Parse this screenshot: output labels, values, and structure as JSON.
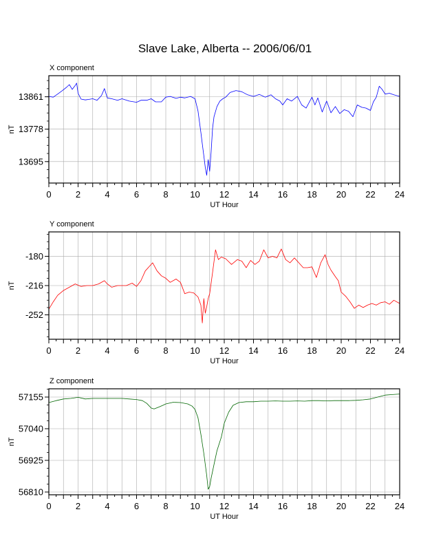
{
  "title": "Slave Lake, Alberta -- 2006/06/01",
  "chart_data": [
    {
      "type": "line",
      "panel_label": "X component",
      "xlabel": "UT Hour",
      "ylabel": "nT",
      "xlim": [
        0,
        24
      ],
      "ylim": [
        13640,
        13915
      ],
      "xticks": [
        0,
        2,
        4,
        6,
        8,
        10,
        12,
        14,
        16,
        18,
        20,
        22,
        24
      ],
      "yticks": [
        13695,
        13778,
        13861
      ],
      "grid": true,
      "color": "#0000ff",
      "series": [
        {
          "x": [
            0,
            0.3,
            0.6,
            0.9,
            1.2,
            1.4,
            1.6,
            1.8,
            1.9,
            2.0,
            2.2,
            2.5,
            3.0,
            3.3,
            3.6,
            3.8,
            4.0,
            4.3,
            4.7,
            5.0,
            5.5,
            6.0,
            6.3,
            6.7,
            7.0,
            7.3,
            7.7,
            8.0,
            8.3,
            8.7,
            9.0,
            9.3,
            9.7,
            10.0,
            10.2,
            10.4,
            10.5,
            10.6,
            10.7,
            10.8,
            10.9,
            11.0,
            11.1,
            11.2,
            11.3,
            11.5,
            11.7,
            11.9,
            12.1,
            12.4,
            12.8,
            13.2,
            13.6,
            14.0,
            14.4,
            14.8,
            15.2,
            15.5,
            15.8,
            16.0,
            16.3,
            16.6,
            17.0,
            17.3,
            17.6,
            18.0,
            18.2,
            18.4,
            18.7,
            19.0,
            19.3,
            19.6,
            19.9,
            20.2,
            20.5,
            20.8,
            21.1,
            21.4,
            21.7,
            22.0,
            22.2,
            22.4,
            22.6,
            22.8,
            23.0,
            23.3,
            23.6,
            24.0
          ],
          "y": [
            13862,
            13860,
            13868,
            13876,
            13885,
            13892,
            13880,
            13890,
            13896,
            13870,
            13855,
            13853,
            13856,
            13852,
            13864,
            13882,
            13858,
            13856,
            13852,
            13856,
            13850,
            13847,
            13852,
            13852,
            13856,
            13848,
            13848,
            13860,
            13862,
            13857,
            13860,
            13858,
            13862,
            13856,
            13825,
            13770,
            13740,
            13710,
            13680,
            13660,
            13700,
            13670,
            13720,
            13780,
            13810,
            13836,
            13850,
            13856,
            13860,
            13872,
            13877,
            13874,
            13866,
            13862,
            13867,
            13860,
            13866,
            13856,
            13850,
            13840,
            13856,
            13850,
            13862,
            13840,
            13832,
            13860,
            13840,
            13858,
            13822,
            13850,
            13820,
            13836,
            13818,
            13828,
            13824,
            13810,
            13840,
            13834,
            13832,
            13826,
            13848,
            13860,
            13888,
            13880,
            13868,
            13870,
            13866,
            13862
          ]
        }
      ]
    },
    {
      "type": "line",
      "panel_label": "Y component",
      "xlabel": "UT Hour",
      "ylabel": "nT",
      "xlim": [
        0,
        24
      ],
      "ylim": [
        -282,
        -150
      ],
      "xticks": [
        0,
        2,
        4,
        6,
        8,
        10,
        12,
        14,
        16,
        18,
        20,
        22,
        24
      ],
      "yticks": [
        -252,
        -216,
        -180
      ],
      "grid": true,
      "color": "#ff0000",
      "series": [
        {
          "x": [
            0,
            0.3,
            0.6,
            1.0,
            1.4,
            1.8,
            2.2,
            2.6,
            3.0,
            3.4,
            3.8,
            4.0,
            4.3,
            4.7,
            5.0,
            5.3,
            5.7,
            6.0,
            6.3,
            6.6,
            6.9,
            7.1,
            7.4,
            7.7,
            8.0,
            8.3,
            8.7,
            9.0,
            9.3,
            9.6,
            9.9,
            10.2,
            10.4,
            10.5,
            10.6,
            10.7,
            10.8,
            10.9,
            11.0,
            11.2,
            11.4,
            11.6,
            11.8,
            12.1,
            12.5,
            12.9,
            13.2,
            13.5,
            13.8,
            14.1,
            14.4,
            14.7,
            15.0,
            15.3,
            15.6,
            15.9,
            16.2,
            16.5,
            16.8,
            17.1,
            17.4,
            17.7,
            18.0,
            18.3,
            18.6,
            18.9,
            19.1,
            19.3,
            19.6,
            19.8,
            20.0,
            20.3,
            20.6,
            20.9,
            21.2,
            21.5,
            21.8,
            22.1,
            22.4,
            22.7,
            23.0,
            23.3,
            23.6,
            24.0
          ],
          "y": [
            -245,
            -236,
            -228,
            -222,
            -218,
            -214,
            -217,
            -216,
            -216,
            -214,
            -210,
            -214,
            -218,
            -216,
            -216,
            -216,
            -213,
            -217,
            -210,
            -198,
            -192,
            -188,
            -198,
            -204,
            -207,
            -212,
            -208,
            -212,
            -226,
            -224,
            -225,
            -230,
            -240,
            -262,
            -232,
            -250,
            -242,
            -232,
            -226,
            -200,
            -172,
            -184,
            -181,
            -183,
            -190,
            -184,
            -186,
            -194,
            -185,
            -190,
            -186,
            -172,
            -182,
            -180,
            -182,
            -171,
            -184,
            -188,
            -182,
            -188,
            -194,
            -194,
            -193,
            -206,
            -188,
            -178,
            -190,
            -197,
            -205,
            -210,
            -224,
            -229,
            -236,
            -244,
            -240,
            -243,
            -240,
            -238,
            -240,
            -237,
            -236,
            -239,
            -234,
            -238
          ]
        }
      ]
    },
    {
      "type": "line",
      "panel_label": "Z component",
      "xlabel": "UT Hour",
      "ylabel": "nT",
      "xlim": [
        0,
        24
      ],
      "ylim": [
        56800,
        57185
      ],
      "xticks": [
        0,
        2,
        4,
        6,
        8,
        10,
        12,
        14,
        16,
        18,
        20,
        22,
        24
      ],
      "yticks": [
        56810,
        56925,
        57040,
        57155
      ],
      "grid": true,
      "color": "#006600",
      "series": [
        {
          "x": [
            0,
            0.5,
            1.0,
            1.5,
            2.0,
            2.5,
            3.0,
            3.5,
            4.0,
            4.5,
            5.0,
            5.5,
            6.0,
            6.4,
            6.7,
            7.0,
            7.2,
            7.5,
            7.8,
            8.0,
            8.5,
            9.0,
            9.5,
            9.8,
            10.0,
            10.2,
            10.4,
            10.6,
            10.8,
            10.9,
            11.0,
            11.1,
            11.3,
            11.5,
            11.8,
            12.0,
            12.3,
            12.6,
            13.0,
            13.5,
            14.0,
            14.5,
            15.0,
            15.5,
            16.0,
            16.5,
            17.0,
            17.5,
            18.0,
            18.5,
            19.0,
            19.5,
            20.0,
            20.5,
            21.0,
            21.5,
            22.0,
            22.5,
            23.0,
            23.5,
            24.0
          ],
          "y": [
            57135,
            57142,
            57148,
            57150,
            57154,
            57148,
            57150,
            57150,
            57150,
            57150,
            57150,
            57148,
            57146,
            57142,
            57132,
            57115,
            57112,
            57118,
            57125,
            57130,
            57136,
            57135,
            57130,
            57122,
            57110,
            57080,
            57020,
            56950,
            56870,
            56820,
            56830,
            56860,
            56910,
            56960,
            57010,
            57060,
            57100,
            57125,
            57135,
            57138,
            57138,
            57140,
            57140,
            57141,
            57140,
            57140,
            57141,
            57140,
            57142,
            57142,
            57141,
            57142,
            57142,
            57142,
            57143,
            57145,
            57148,
            57155,
            57162,
            57164,
            57166
          ]
        }
      ]
    }
  ]
}
